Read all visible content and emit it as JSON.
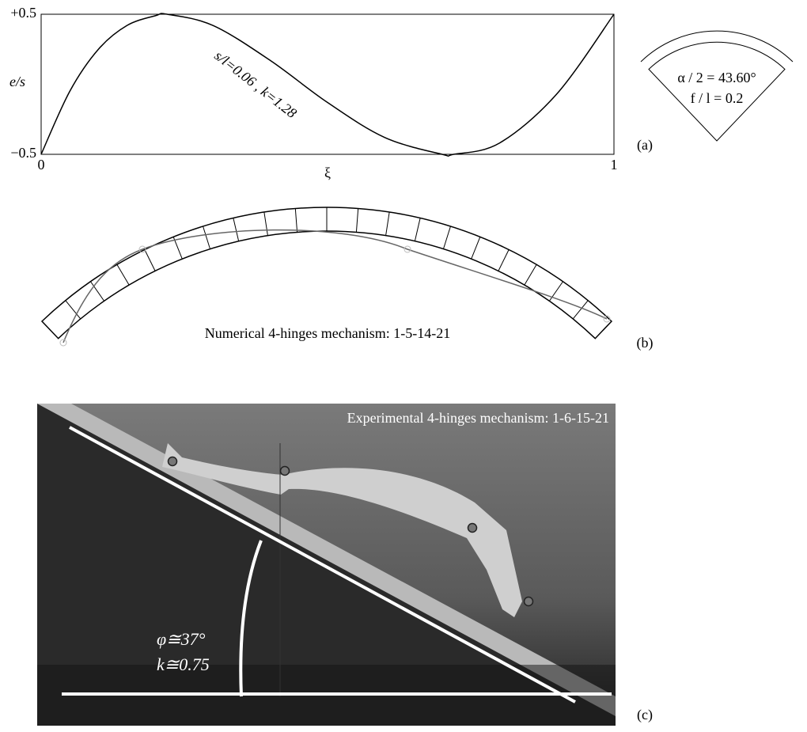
{
  "chart_data": {
    "type": "line",
    "xlabel": "ξ",
    "ylabel": "e/s",
    "x": [
      0,
      0.05,
      0.1,
      0.15,
      0.2,
      0.22,
      0.3,
      0.4,
      0.5,
      0.6,
      0.7,
      0.72,
      0.8,
      0.9,
      1
    ],
    "values": [
      -0.5,
      -0.05,
      0.25,
      0.42,
      0.49,
      0.5,
      0.42,
      0.17,
      -0.13,
      -0.38,
      -0.5,
      -0.5,
      -0.42,
      -0.07,
      0.5
    ],
    "color": "#000000",
    "xlim": [
      0,
      1
    ],
    "xticks": [
      0,
      1
    ],
    "ylim": [
      -0.5,
      0.5
    ],
    "yticks": [
      {
        "value": 0.5,
        "label": "+0.5"
      },
      {
        "value": -0.5,
        "label": "−0.5"
      }
    ],
    "annotation": "s/l=0.06 , k=1.28",
    "panel_label": "(a)"
  },
  "inset": {
    "angle": "α / 2 = 43.60°",
    "ratio": "f / l = 0.2"
  },
  "panel_b": {
    "caption": "Numerical 4-hinges mechanism: 1-5-14-21",
    "panel_label": "(b)"
  },
  "panel_c": {
    "caption": "Experimental 4-hinges mechanism: 1-6-15-21",
    "angle": "φ≅37°",
    "k": "k≅0.75",
    "panel_label": "(c)"
  }
}
